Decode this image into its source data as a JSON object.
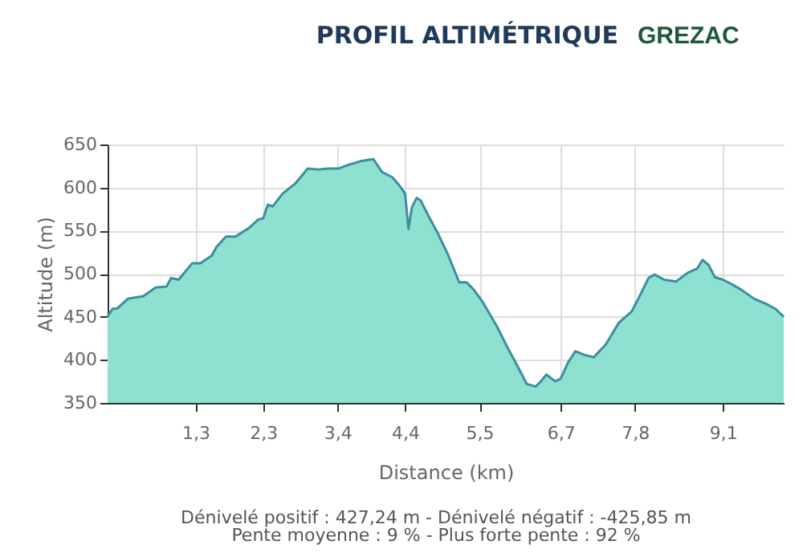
{
  "chart_data": {
    "type": "area",
    "title": "PROFIL ALTIMÉTRIQUE",
    "subtitle": "GREZAC",
    "xlabel": "Distance (km)",
    "ylabel": "Altitude (m)",
    "annotations": [
      "Dénivelé positif : 427,24 m - Dénivelé négatif : -425,85 m",
      "Pente moyenne : 9 % - Plus forte pente : 92 %"
    ],
    "x": [
      0.0,
      0.07,
      0.15,
      0.3,
      0.53,
      0.71,
      0.87,
      0.94,
      1.05,
      1.25,
      1.37,
      1.54,
      1.61,
      1.75,
      1.89,
      2.09,
      2.23,
      2.3,
      2.37,
      2.44,
      2.59,
      2.78,
      2.96,
      3.11,
      3.27,
      3.41,
      3.55,
      3.76,
      3.93,
      4.06,
      4.21,
      4.32,
      4.4,
      4.45,
      4.5,
      4.57,
      4.63,
      4.74,
      4.89,
      5.04,
      5.2,
      5.31,
      5.42,
      5.54,
      5.75,
      5.91,
      6.08,
      6.2,
      6.33,
      6.41,
      6.49,
      6.62,
      6.7,
      6.81,
      6.92,
      7.04,
      7.19,
      7.37,
      7.56,
      7.75,
      7.87,
      8.0,
      8.09,
      8.23,
      8.41,
      8.58,
      8.72,
      8.8,
      8.89,
      8.98,
      9.1,
      9.25,
      9.38,
      9.56,
      9.74,
      9.88,
      10.0
    ],
    "series": [
      {
        "color": "#8ee0d0",
        "values": [
          450,
          459,
          460,
          471,
          474,
          484,
          485,
          495,
          493,
          512,
          512,
          521,
          531,
          543,
          543,
          553,
          563,
          564,
          580,
          578,
          593,
          605,
          622,
          621,
          622,
          622,
          626,
          631,
          633,
          618,
          612,
          602,
          593,
          552,
          577,
          588,
          585,
          568,
          546,
          521,
          490,
          490,
          481,
          468,
          440,
          415,
          390,
          372,
          369,
          375,
          383,
          375,
          378,
          397,
          410,
          406,
          403,
          418,
          443,
          456,
          474,
          495,
          499,
          493,
          491,
          501,
          506,
          516,
          510,
          496,
          493,
          487,
          481,
          471,
          465,
          459,
          450
        ]
      }
    ],
    "xlim": [
      0,
      10.0
    ],
    "ylim": [
      350,
      650
    ],
    "xticks": [
      {
        "value": 1.3,
        "label": "1,3"
      },
      {
        "value": 2.3,
        "label": "2,3"
      },
      {
        "value": 3.4,
        "label": "3,4"
      },
      {
        "value": 4.4,
        "label": "4,4"
      },
      {
        "value": 5.5,
        "label": "5,5"
      },
      {
        "value": 6.7,
        "label": "6,7"
      },
      {
        "value": 7.8,
        "label": "7,8"
      },
      {
        "value": 9.1,
        "label": "9,1"
      }
    ],
    "yticks": [
      350,
      400,
      450,
      500,
      550,
      600,
      650
    ],
    "grid": true
  }
}
